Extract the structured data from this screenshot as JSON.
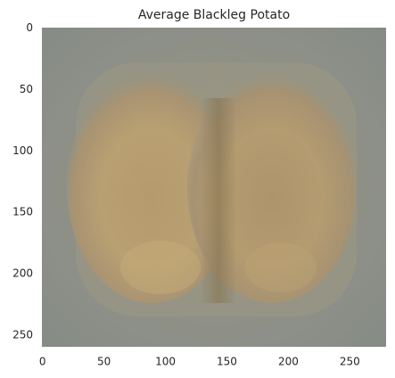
{
  "chart_data": {
    "type": "image",
    "title": "Average Blackleg Potato",
    "xlim": [
      -0.5,
      279.5
    ],
    "ylim": [
      259.5,
      -0.5
    ],
    "xticks": [
      0,
      50,
      100,
      150,
      200,
      250
    ],
    "yticks": [
      0,
      50,
      100,
      150,
      200,
      250
    ],
    "grid": false
  }
}
